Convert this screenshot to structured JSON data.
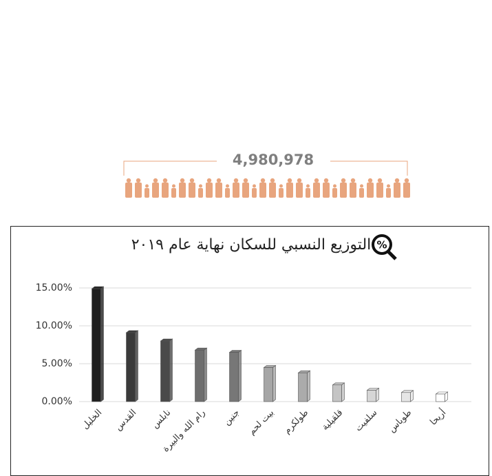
{
  "header": {
    "total": "4,980,978"
  },
  "chart_data": {
    "type": "bar",
    "title": "التوزيع النسبي للسكان نهاية عام ٢٠١٩",
    "title_icon": "%",
    "categories": [
      "الخليل",
      "القدس",
      "نابلس",
      "رام الله والبيرة",
      "جنين",
      "بيت لحم",
      "طولكرم",
      "قلقيلية",
      "سلفيت",
      "طوباس",
      "أريحا"
    ],
    "values": [
      14.9,
      9.1,
      8.0,
      6.8,
      6.5,
      4.5,
      3.8,
      2.2,
      1.5,
      1.2,
      1.0
    ],
    "colors": [
      "#1f1f1f",
      "#3a3a3a",
      "#4a4a4a",
      "#6e6e6e",
      "#777777",
      "#a6a6a6",
      "#ababab",
      "#c4c4c4",
      "#d6d6d6",
      "#e6e6e6",
      "#ffffff"
    ],
    "ylim": [
      0,
      15
    ],
    "yticks": [
      {
        "value": 0,
        "label": "0.00%"
      },
      {
        "value": 5,
        "label": "5.00%"
      },
      {
        "value": 10,
        "label": "10.00%"
      },
      {
        "value": 15,
        "label": "15.00%"
      }
    ],
    "grid": true
  }
}
